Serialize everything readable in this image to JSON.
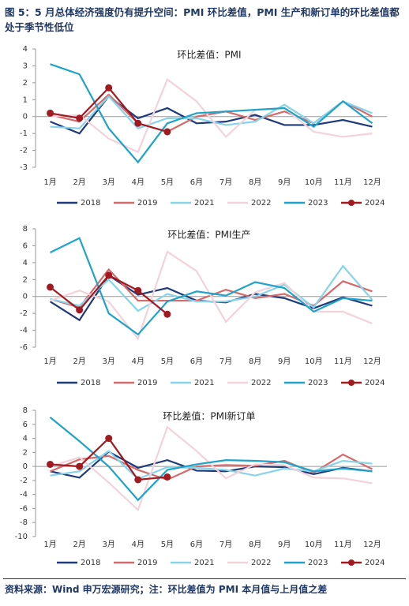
{
  "title": "图 5：5 月总体经济强度仍有提升空间：PMI 环比差值，PMI 生产和新订单的环比差值都处于季节性低位",
  "source": "资料来源：Wind 申万宏源研究；注：环比差值为 PMI 本月值与上月值之差",
  "chart_data": [
    {
      "type": "line",
      "title": "环比差值：PMI",
      "categories": [
        "1月",
        "2月",
        "3月",
        "4月",
        "5月",
        "6月",
        "7月",
        "8月",
        "9月",
        "10月",
        "11月",
        "12月"
      ],
      "ylim": [
        -3,
        4
      ],
      "yticks": [
        -3,
        -2,
        -1,
        0,
        1,
        2,
        3,
        4
      ],
      "legend": "bottom",
      "series": [
        {
          "name": "2018",
          "color": "#1f3a7a",
          "values": [
            -0.3,
            -1.0,
            1.2,
            -0.1,
            0.5,
            -0.4,
            -0.3,
            0.1,
            -0.5,
            -0.5,
            -0.2,
            -0.6
          ]
        },
        {
          "name": "2019",
          "color": "#d46a6a",
          "values": [
            0.1,
            -0.3,
            1.3,
            -0.4,
            -0.9,
            0.0,
            0.3,
            -0.2,
            0.3,
            -0.4,
            0.9,
            0.0
          ]
        },
        {
          "name": "2021",
          "color": "#86d3ea",
          "values": [
            -0.6,
            -0.7,
            1.2,
            -0.7,
            -0.1,
            -0.1,
            -0.5,
            -0.3,
            0.7,
            -0.4,
            0.9,
            0.2
          ]
        },
        {
          "name": "2022",
          "color": "#f4d2da",
          "values": [
            0.0,
            0.1,
            -1.3,
            -2.1,
            2.2,
            0.9,
            -1.2,
            0.4,
            0.5,
            -0.9,
            -1.2,
            -1.0
          ]
        },
        {
          "name": "2023",
          "color": "#1fa3c9",
          "values": [
            3.1,
            2.5,
            -0.7,
            -2.7,
            -0.4,
            0.2,
            0.3,
            0.4,
            0.5,
            -0.6,
            0.9,
            -0.4
          ]
        },
        {
          "name": "2024",
          "color": "#a01a20",
          "marker": "circle",
          "values": [
            0.2,
            -0.1,
            1.7,
            -0.4,
            -0.9,
            null,
            null,
            null,
            null,
            null,
            null,
            null
          ]
        }
      ]
    },
    {
      "type": "line",
      "title": "环比差值：PMI生产",
      "categories": [
        "1月",
        "2月",
        "3月",
        "4月",
        "5月",
        "6月",
        "7月",
        "8月",
        "9月",
        "10月",
        "11月",
        "12月"
      ],
      "ylim": [
        -6,
        8
      ],
      "yticks": [
        -6,
        -4,
        -2,
        0,
        2,
        4,
        6,
        8
      ],
      "legend": "bottom",
      "series": [
        {
          "name": "2018",
          "color": "#1f3a7a",
          "values": [
            -0.6,
            -2.8,
            2.5,
            0.2,
            1.0,
            -0.5,
            -0.7,
            0.3,
            -0.2,
            -1.4,
            -0.1,
            -1.1
          ]
        },
        {
          "name": "2019",
          "color": "#d46a6a",
          "values": [
            -0.3,
            -1.3,
            3.2,
            -0.5,
            -0.5,
            -0.5,
            0.8,
            -0.2,
            0.3,
            -1.1,
            1.8,
            0.6
          ]
        },
        {
          "name": "2021",
          "color": "#86d3ea",
          "values": [
            -0.3,
            -1.1,
            2.0,
            -1.7,
            0.3,
            -0.6,
            -0.6,
            0.0,
            1.4,
            -1.3,
            3.6,
            -0.4
          ]
        },
        {
          "name": "2022",
          "color": "#f4d2da",
          "values": [
            -0.5,
            0.7,
            -0.6,
            -5.0,
            5.3,
            3.0,
            -3.0,
            0.5,
            1.6,
            -1.8,
            -1.8,
            -3.2
          ]
        },
        {
          "name": "2023",
          "color": "#1fa3c9",
          "values": [
            5.2,
            6.9,
            -2.0,
            -4.5,
            -0.6,
            0.6,
            0.1,
            1.7,
            1.0,
            -1.8,
            -0.2,
            -0.5
          ]
        },
        {
          "name": "2024",
          "color": "#a01a20",
          "marker": "circle",
          "values": [
            1.1,
            -1.6,
            2.5,
            0.7,
            -2.1,
            null,
            null,
            null,
            null,
            null,
            null,
            null
          ]
        }
      ]
    },
    {
      "type": "line",
      "title": "环比差值：PMI新订单",
      "categories": [
        "1月",
        "2月",
        "3月",
        "4月",
        "5月",
        "6月",
        "7月",
        "8月",
        "9月",
        "10月",
        "11月",
        "12月"
      ],
      "ylim": [
        -10,
        8
      ],
      "yticks": [
        -10,
        -8,
        -6,
        -4,
        -2,
        0,
        2,
        4,
        6,
        8
      ],
      "legend": "bottom",
      "series": [
        {
          "name": "2018",
          "color": "#1f3a7a",
          "values": [
            -0.7,
            -1.6,
            2.1,
            -0.2,
            0.9,
            -0.6,
            -0.7,
            0.0,
            -0.1,
            -1.1,
            -0.2,
            -0.7
          ]
        },
        {
          "name": "2019",
          "color": "#d46a6a",
          "values": [
            -0.7,
            1.0,
            1.5,
            -0.5,
            -1.9,
            0.0,
            0.2,
            0.1,
            0.8,
            -0.9,
            1.7,
            -0.4
          ]
        },
        {
          "name": "2021",
          "color": "#86d3ea",
          "values": [
            -1.3,
            -0.7,
            2.2,
            -1.8,
            -0.1,
            -0.2,
            -0.5,
            -1.3,
            -0.3,
            -0.7,
            0.8,
            0.4
          ]
        },
        {
          "name": "2022",
          "color": "#f4d2da",
          "values": [
            0.0,
            1.3,
            -2.3,
            -6.2,
            5.6,
            2.2,
            -1.7,
            0.3,
            0.2,
            -1.6,
            -1.7,
            -2.4
          ]
        },
        {
          "name": "2023",
          "color": "#1fa3c9",
          "values": [
            7.0,
            3.6,
            0.0,
            -4.8,
            -0.5,
            0.3,
            0.9,
            0.8,
            0.6,
            -0.7,
            -0.3,
            -0.7
          ]
        },
        {
          "name": "2024",
          "color": "#a01a20",
          "marker": "circle",
          "values": [
            0.3,
            0.0,
            4.0,
            -1.9,
            -1.5,
            null,
            null,
            null,
            null,
            null,
            null,
            null
          ]
        }
      ]
    }
  ]
}
